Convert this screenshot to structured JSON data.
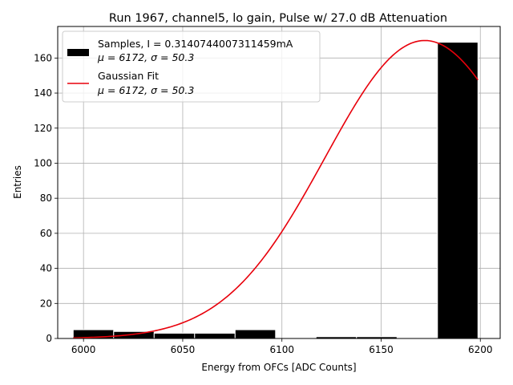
{
  "chart_data": {
    "type": "bar",
    "title": "Run 1967, channel5, lo gain, Pulse w/ 27.0 dB Attenuation",
    "xlabel": "Energy from OFCs [ADC Counts]",
    "ylabel": "Entries",
    "xlim": [
      5987,
      6210
    ],
    "ylim": [
      0,
      178
    ],
    "xticks": [
      6000,
      6050,
      6100,
      6150,
      6200
    ],
    "yticks": [
      0,
      20,
      40,
      60,
      80,
      100,
      120,
      140,
      160
    ],
    "grid": true,
    "legend_position": "top-left",
    "histogram": {
      "name": "Samples, I = 0.3140744007311459mA",
      "stats_label": "$\\mu$ = 6172, $\\sigma$ = 50.3",
      "mu_label": "μ = 6172, σ = 50.3",
      "color": "#000000",
      "bin_edges": [
        5994.8,
        6015.2,
        6035.6,
        6056.0,
        6076.4,
        6096.8,
        6117.2,
        6137.6,
        6158.0,
        6178.4,
        6198.8
      ],
      "counts": [
        5,
        4,
        3,
        3,
        5,
        0,
        1,
        1,
        0,
        169
      ]
    },
    "fit": {
      "name": "Gaussian Fit",
      "stats_label": "$\\mu$ = 6172, $\\sigma$ = 50.3",
      "mu_label": "μ = 6172, σ = 50.3",
      "color": "#e8000b",
      "amplitude": 170,
      "mu": 6172,
      "sigma": 50.3,
      "x_range": [
        5994.8,
        6198.8
      ]
    }
  }
}
